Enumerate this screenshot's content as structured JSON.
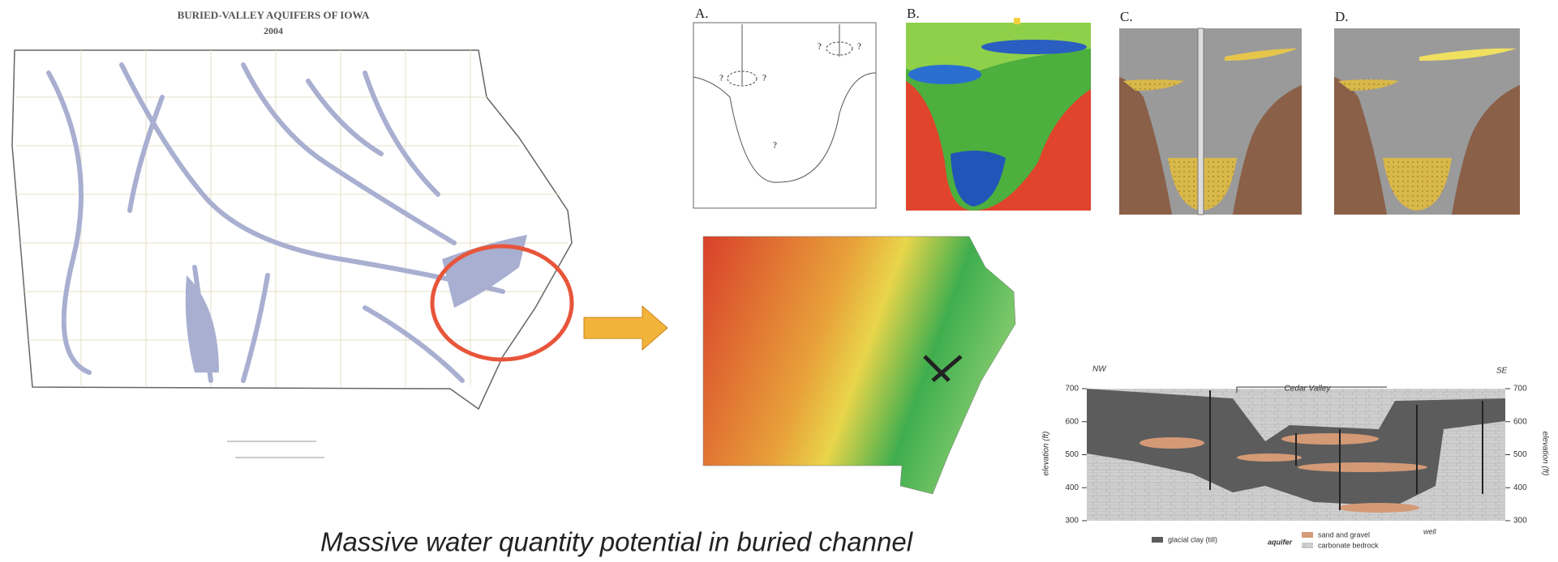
{
  "map": {
    "title": "BURIED-VALLEY AQUIFERS OF IOWA",
    "subtitle": "2004"
  },
  "panels": [
    "A.",
    "B.",
    "C.",
    "D."
  ],
  "panel_a_marks": [
    "?",
    "?",
    "?",
    "?",
    "?"
  ],
  "cross_section": {
    "left": "NW",
    "right": "SE",
    "valley": "Cedar Valley",
    "axis_label": "elevation (ft)",
    "ticks": [
      700,
      600,
      500,
      400,
      300
    ],
    "legend": {
      "clay": "glacial clay (till)",
      "aquifer": "aquifer",
      "sand": "sand and gravel",
      "bedrock": "carbonate bedrock",
      "well": "well"
    }
  },
  "caption": "Massive water quantity potential in buried channel"
}
